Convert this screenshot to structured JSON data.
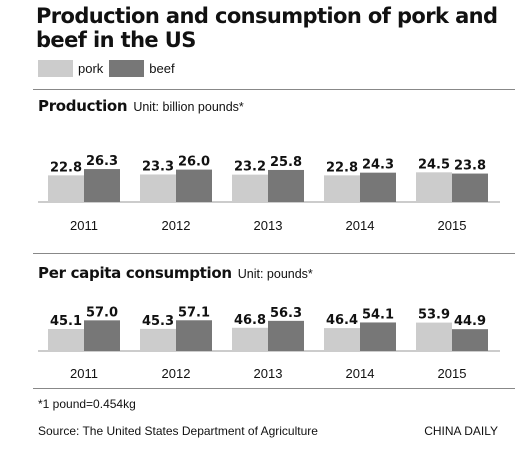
{
  "title": "Production and consumption of pork and beef in the US",
  "legend": [
    {
      "name": "pork",
      "color": "#cccccc"
    },
    {
      "name": "beef",
      "color": "#777777"
    }
  ],
  "chart_data": [
    {
      "type": "bar",
      "title": "Production",
      "unit": "Unit: billion pounds*",
      "categories": [
        "2011",
        "2012",
        "2013",
        "2014",
        "2015"
      ],
      "series": [
        {
          "name": "pork",
          "values": [
            22.8,
            23.3,
            23.2,
            22.8,
            24.5
          ]
        },
        {
          "name": "beef",
          "values": [
            26.3,
            26.0,
            25.8,
            24.3,
            23.8
          ]
        }
      ],
      "value_labels": {
        "pork": [
          "22.8",
          "23.3",
          "23.2",
          "22.8",
          "24.5"
        ],
        "beef": [
          "26.3",
          "26.0",
          "25.8",
          "24.3",
          "23.8"
        ]
      }
    },
    {
      "type": "bar",
      "title": "Per capita consumption",
      "unit": "Unit: pounds*",
      "categories": [
        "2011",
        "2012",
        "2013",
        "2014",
        "2015"
      ],
      "series": [
        {
          "name": "pork",
          "values": [
            45.1,
            45.3,
            46.8,
            46.4,
            53.9
          ]
        },
        {
          "name": "beef",
          "values": [
            57.0,
            57.1,
            56.3,
            54.1,
            44.9
          ]
        }
      ],
      "value_labels": {
        "pork": [
          "45.1",
          "45.3",
          "46.8",
          "46.4",
          "53.9"
        ],
        "beef": [
          "57.0",
          "57.1",
          "56.3",
          "54.1",
          "44.9"
        ]
      }
    }
  ],
  "footnote": "*1 pound=0.454kg",
  "source": "Source: The United States Department of Agriculture",
  "brand": "CHINA DAILY"
}
